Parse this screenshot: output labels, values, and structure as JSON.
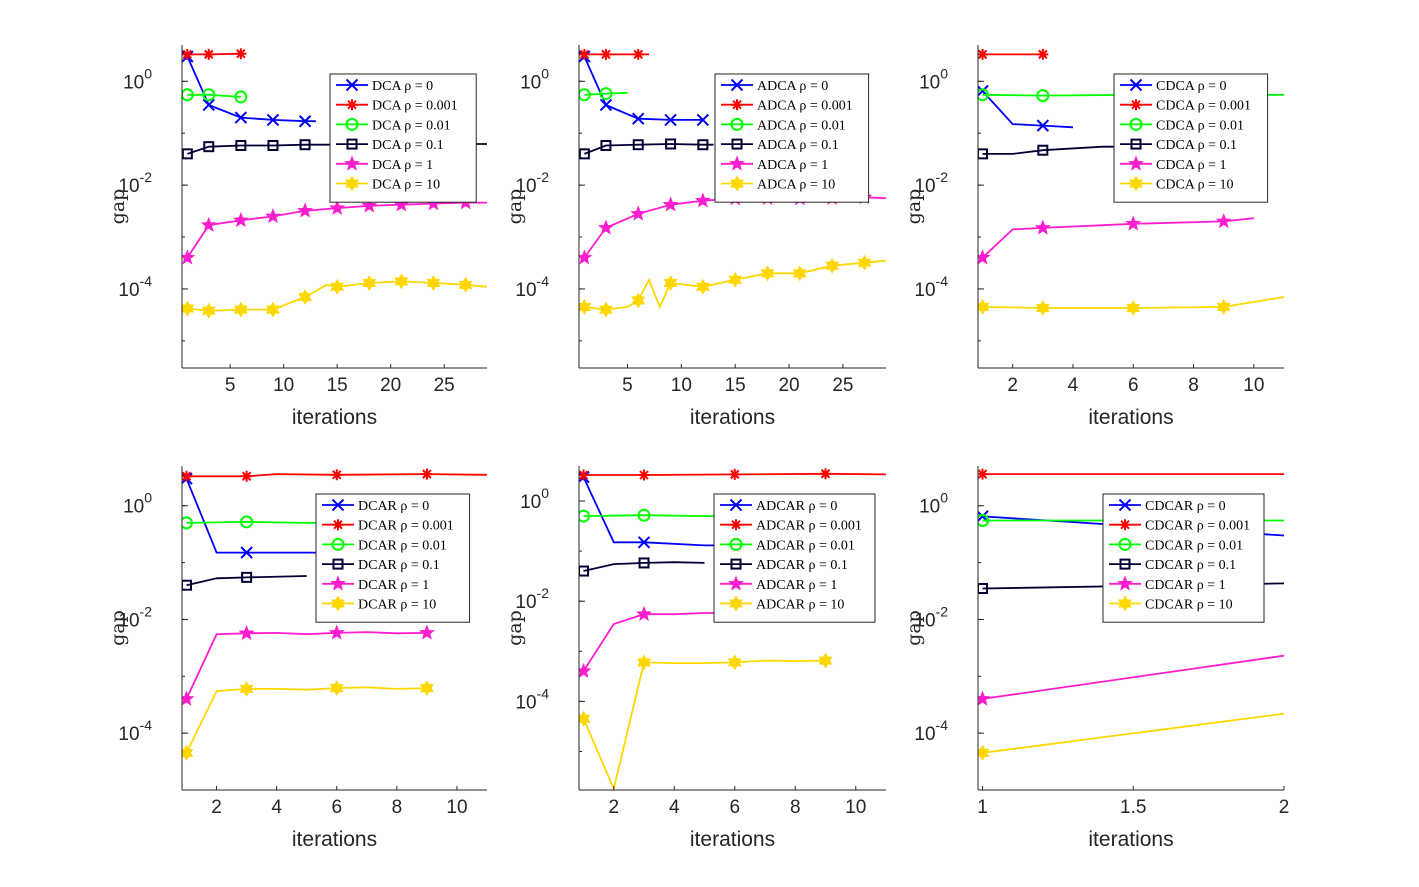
{
  "colors": {
    "rho_0": "#0000ff",
    "rho_0.001": "#ff0000",
    "rho_0.01": "#00ff00",
    "rho_0.1": "#000033",
    "rho_1": "#ff1dce",
    "rho_10": "#ffd700"
  },
  "chart_data": [
    {
      "type": "line",
      "yscale": "log",
      "xlabel": "iterations",
      "ylabel": "gap",
      "xlim": [
        0.5,
        29
      ],
      "ylim": [
        3e-06,
        5
      ],
      "xticks": [
        5,
        10,
        15,
        20,
        25
      ],
      "xtick_labels": [
        "5",
        "10",
        "15",
        "20",
        "25"
      ],
      "yticks": [
        1,
        0.01,
        0.0001
      ],
      "ytick_labels": [
        "10^0",
        "10^-2",
        "10^-4"
      ],
      "series": [
        {
          "name": "DCA ρ = 0",
          "marker": "x",
          "colorKey": "rho_0",
          "x": [
            1,
            3,
            6,
            9,
            12,
            13
          ],
          "y": [
            3,
            0.35,
            0.2,
            0.18,
            0.17,
            0.17
          ],
          "mk": [
            1,
            3,
            6,
            9,
            12
          ]
        },
        {
          "name": "DCA ρ = 0.001",
          "marker": "asterisk",
          "colorKey": "rho_0.001",
          "x": [
            1,
            3,
            6
          ],
          "y": [
            3.3,
            3.3,
            3.4
          ],
          "mk": [
            1,
            3,
            6
          ]
        },
        {
          "name": "DCA ρ = 0.01",
          "marker": "circle",
          "colorKey": "rho_0.01",
          "x": [
            1,
            3,
            6
          ],
          "y": [
            0.55,
            0.55,
            0.5
          ],
          "mk": [
            1,
            3,
            6
          ]
        },
        {
          "name": "DCA ρ = 0.1",
          "marker": "square",
          "colorKey": "rho_0.1",
          "x": [
            1,
            3,
            6,
            9,
            12,
            15,
            20,
            25,
            29
          ],
          "y": [
            0.04,
            0.055,
            0.058,
            0.058,
            0.06,
            0.06,
            0.06,
            0.062,
            0.062
          ],
          "mk": [
            1,
            3,
            6,
            9,
            12
          ]
        },
        {
          "name": "DCA ρ = 1",
          "marker": "star",
          "colorKey": "rho_1",
          "x": [
            1,
            3,
            6,
            9,
            12,
            15,
            18,
            21,
            24,
            27,
            29
          ],
          "y": [
            0.0004,
            0.0017,
            0.0021,
            0.0025,
            0.0032,
            0.0036,
            0.004,
            0.0042,
            0.0044,
            0.0046,
            0.0046
          ],
          "mk": [
            1,
            3,
            6,
            9,
            12,
            15,
            18,
            21,
            24,
            27
          ]
        },
        {
          "name": "DCA ρ = 10",
          "marker": "hexagram",
          "colorKey": "rho_10",
          "x": [
            1,
            3,
            6,
            9,
            12,
            14,
            15,
            18,
            21,
            24,
            27,
            29
          ],
          "y": [
            4.2e-05,
            3.8e-05,
            4e-05,
            4e-05,
            7e-05,
            0.00012,
            0.00011,
            0.00013,
            0.00014,
            0.00013,
            0.00012,
            0.00011
          ],
          "mk": [
            1,
            3,
            6,
            9,
            12,
            15,
            18,
            21,
            24,
            27
          ]
        }
      ]
    },
    {
      "type": "line",
      "yscale": "log",
      "xlabel": "iterations",
      "ylabel": "gap",
      "xlim": [
        0.5,
        29
      ],
      "ylim": [
        3e-06,
        5
      ],
      "xticks": [
        5,
        10,
        15,
        20,
        25
      ],
      "xtick_labels": [
        "5",
        "10",
        "15",
        "20",
        "25"
      ],
      "yticks": [
        1,
        0.01,
        0.0001
      ],
      "ytick_labels": [
        "10^0",
        "10^-2",
        "10^-4"
      ],
      "series": [
        {
          "name": "ADCA ρ = 0",
          "marker": "x",
          "colorKey": "rho_0",
          "x": [
            1,
            3,
            6,
            9,
            12
          ],
          "y": [
            3,
            0.35,
            0.19,
            0.18,
            0.18
          ],
          "mk": [
            1,
            3,
            6,
            9,
            12
          ]
        },
        {
          "name": "ADCA ρ = 0.001",
          "marker": "asterisk",
          "colorKey": "rho_0.001",
          "x": [
            1,
            3,
            6,
            7
          ],
          "y": [
            3.3,
            3.3,
            3.3,
            3.3
          ],
          "mk": [
            1,
            3,
            6
          ]
        },
        {
          "name": "ADCA ρ = 0.01",
          "marker": "circle",
          "colorKey": "rho_0.01",
          "x": [
            1,
            3,
            5
          ],
          "y": [
            0.55,
            0.58,
            0.6
          ],
          "mk": [
            1,
            3
          ]
        },
        {
          "name": "ADCA ρ = 0.1",
          "marker": "square",
          "colorKey": "rho_0.1",
          "x": [
            1,
            3,
            6,
            9,
            12,
            13
          ],
          "y": [
            0.04,
            0.058,
            0.06,
            0.062,
            0.06,
            0.06
          ],
          "mk": [
            1,
            3,
            6,
            9,
            12
          ]
        },
        {
          "name": "ADCA ρ = 1",
          "marker": "star",
          "colorKey": "rho_1",
          "x": [
            1,
            3,
            6,
            9,
            12,
            15,
            18,
            21,
            24,
            27,
            29
          ],
          "y": [
            0.0004,
            0.0015,
            0.0028,
            0.0042,
            0.005,
            0.0055,
            0.0056,
            0.0055,
            0.0056,
            0.0058,
            0.0056
          ],
          "mk": [
            1,
            3,
            6,
            9,
            12,
            15,
            18,
            21,
            24,
            27
          ]
        },
        {
          "name": "ADCA ρ = 10",
          "marker": "hexagram",
          "colorKey": "rho_10",
          "x": [
            1,
            3,
            5,
            6,
            7,
            8,
            9,
            12,
            15,
            18,
            21,
            24,
            27,
            29
          ],
          "y": [
            4.5e-05,
            4e-05,
            4.5e-05,
            6e-05,
            0.00015,
            4.5e-05,
            0.00013,
            0.00011,
            0.00015,
            0.0002,
            0.0002,
            0.00028,
            0.00032,
            0.00035
          ],
          "mk": [
            1,
            3,
            6,
            9,
            12,
            15,
            18,
            21,
            24,
            27
          ]
        }
      ]
    },
    {
      "type": "line",
      "yscale": "log",
      "xlabel": "iterations",
      "ylabel": "gap",
      "xlim": [
        0.85,
        11
      ],
      "ylim": [
        3e-06,
        5
      ],
      "xticks": [
        2,
        4,
        6,
        8,
        10
      ],
      "xtick_labels": [
        "2",
        "4",
        "6",
        "8",
        "10"
      ],
      "yticks": [
        1,
        0.01,
        0.0001
      ],
      "ytick_labels": [
        "10^0",
        "10^-2",
        "10^-4"
      ],
      "series": [
        {
          "name": "CDCA ρ = 0",
          "marker": "x",
          "colorKey": "rho_0",
          "x": [
            1,
            2,
            3,
            4
          ],
          "y": [
            0.65,
            0.15,
            0.14,
            0.13
          ],
          "mk": [
            1,
            3
          ]
        },
        {
          "name": "CDCA ρ = 0.001",
          "marker": "asterisk",
          "colorKey": "rho_0.001",
          "x": [
            1,
            3
          ],
          "y": [
            3.3,
            3.3
          ],
          "mk": [
            1,
            3
          ]
        },
        {
          "name": "CDCA ρ = 0.01",
          "marker": "circle",
          "colorKey": "rho_0.01",
          "x": [
            1,
            3,
            6,
            11
          ],
          "y": [
            0.55,
            0.53,
            0.55,
            0.55
          ],
          "mk": [
            1,
            3
          ]
        },
        {
          "name": "CDCA ρ = 0.1",
          "marker": "square",
          "colorKey": "rho_0.1",
          "x": [
            1,
            2,
            3,
            5,
            6
          ],
          "y": [
            0.04,
            0.04,
            0.047,
            0.055,
            0.055
          ],
          "mk": [
            1,
            3
          ]
        },
        {
          "name": "CDCA ρ = 1",
          "marker": "star",
          "colorKey": "rho_1",
          "x": [
            1,
            2,
            3,
            6,
            9,
            10
          ],
          "y": [
            0.0004,
            0.0014,
            0.0015,
            0.0018,
            0.002,
            0.0023
          ],
          "mk": [
            1,
            3,
            6,
            9
          ]
        },
        {
          "name": "CDCA ρ = 10",
          "marker": "hexagram",
          "colorKey": "rho_10",
          "x": [
            1,
            3,
            6,
            9,
            11
          ],
          "y": [
            4.5e-05,
            4.3e-05,
            4.3e-05,
            4.5e-05,
            7e-05
          ],
          "mk": [
            1,
            3,
            6,
            9
          ]
        }
      ]
    },
    {
      "type": "line",
      "yscale": "log",
      "xlabel": "iterations",
      "ylabel": "gap",
      "xlim": [
        0.85,
        11
      ],
      "ylim": [
        1e-05,
        5
      ],
      "xticks": [
        2,
        4,
        6,
        8,
        10
      ],
      "xtick_labels": [
        "2",
        "4",
        "6",
        "8",
        "10"
      ],
      "yticks": [
        1,
        0.01,
        0.0001
      ],
      "ytick_labels": [
        "10^0",
        "10^-2",
        "10^-4"
      ],
      "series": [
        {
          "name": "DCAR ρ = 0",
          "marker": "x",
          "colorKey": "rho_0",
          "x": [
            1,
            2,
            3,
            6,
            8
          ],
          "y": [
            3,
            0.15,
            0.15,
            0.15,
            0.15
          ],
          "mk": [
            1,
            3
          ]
        },
        {
          "name": "DCAR ρ = 0.001",
          "marker": "asterisk",
          "colorKey": "rho_0.001",
          "x": [
            1,
            3,
            4,
            6,
            9,
            11
          ],
          "y": [
            3.3,
            3.3,
            3.6,
            3.5,
            3.6,
            3.5
          ],
          "mk": [
            1,
            3,
            6,
            9
          ]
        },
        {
          "name": "DCAR ρ = 0.01",
          "marker": "circle",
          "colorKey": "rho_0.01",
          "x": [
            1,
            3,
            5,
            6
          ],
          "y": [
            0.5,
            0.52,
            0.5,
            0.5
          ],
          "mk": [
            1,
            3
          ]
        },
        {
          "name": "DCAR ρ = 0.1",
          "marker": "square",
          "colorKey": "rho_0.1",
          "x": [
            1,
            2,
            3,
            5
          ],
          "y": [
            0.04,
            0.053,
            0.055,
            0.058
          ],
          "mk": [
            1,
            3
          ]
        },
        {
          "name": "DCAR ρ = 1",
          "marker": "star",
          "colorKey": "rho_1",
          "x": [
            1,
            2,
            3,
            4,
            5,
            6,
            7,
            8,
            9
          ],
          "y": [
            0.0004,
            0.0055,
            0.0057,
            0.0058,
            0.0055,
            0.0058,
            0.006,
            0.0057,
            0.0058
          ],
          "mk": [
            1,
            3,
            6,
            9
          ]
        },
        {
          "name": "DCAR ρ = 10",
          "marker": "hexagram",
          "colorKey": "rho_10",
          "x": [
            1,
            2,
            3,
            4,
            5,
            6,
            7,
            8,
            9
          ],
          "y": [
            4.5e-05,
            0.00055,
            0.0006,
            0.0006,
            0.00058,
            0.00062,
            0.00064,
            0.0006,
            0.00062
          ],
          "mk": [
            1,
            3,
            6,
            9
          ]
        }
      ]
    },
    {
      "type": "line",
      "yscale": "log",
      "xlabel": "iterations",
      "ylabel": "gap",
      "xlim": [
        0.85,
        11
      ],
      "ylim": [
        1.7e-06,
        5
      ],
      "xticks": [
        2,
        4,
        6,
        8,
        10
      ],
      "xtick_labels": [
        "2",
        "4",
        "6",
        "8",
        "10"
      ],
      "yticks": [
        1,
        0.01,
        0.0001
      ],
      "ytick_labels": [
        "10^0",
        "10^-2",
        "10^-4"
      ],
      "series": [
        {
          "name": "ADCAR ρ = 0",
          "marker": "x",
          "colorKey": "rho_0",
          "x": [
            1,
            2,
            3,
            5,
            6
          ],
          "y": [
            3,
            0.15,
            0.15,
            0.13,
            0.13
          ],
          "mk": [
            1,
            3
          ]
        },
        {
          "name": "ADCAR ρ = 0.001",
          "marker": "asterisk",
          "colorKey": "rho_0.001",
          "x": [
            1,
            3,
            6,
            9,
            11
          ],
          "y": [
            3.3,
            3.3,
            3.4,
            3.5,
            3.4
          ],
          "mk": [
            1,
            3,
            6,
            9
          ]
        },
        {
          "name": "ADCAR ρ = 0.01",
          "marker": "circle",
          "colorKey": "rho_0.01",
          "x": [
            1,
            3,
            5,
            6
          ],
          "y": [
            0.5,
            0.52,
            0.5,
            0.5
          ],
          "mk": [
            1,
            3
          ]
        },
        {
          "name": "ADCAR ρ = 0.1",
          "marker": "square",
          "colorKey": "rho_0.1",
          "x": [
            1,
            2,
            3,
            4,
            5
          ],
          "y": [
            0.04,
            0.055,
            0.058,
            0.06,
            0.058
          ],
          "mk": [
            1,
            3
          ]
        },
        {
          "name": "ADCAR ρ = 1",
          "marker": "star",
          "colorKey": "rho_1",
          "x": [
            1,
            2,
            3,
            4,
            5,
            6,
            7,
            8,
            9
          ],
          "y": [
            0.0004,
            0.0035,
            0.0055,
            0.0055,
            0.0058,
            0.0058,
            0.006,
            0.0058,
            0.006
          ],
          "mk": [
            1,
            3,
            6,
            9
          ]
        },
        {
          "name": "ADCAR ρ = 10",
          "marker": "hexagram",
          "colorKey": "rho_10",
          "x": [
            1,
            2,
            3,
            4,
            5,
            6,
            7,
            8,
            9
          ],
          "y": [
            4.5e-05,
            1.8e-06,
            0.0006,
            0.00058,
            0.00058,
            0.0006,
            0.00065,
            0.00064,
            0.00065
          ],
          "mk": [
            1,
            3,
            6,
            9
          ]
        }
      ]
    },
    {
      "type": "line",
      "yscale": "log",
      "xlabel": "iterations",
      "ylabel": "gap",
      "xlim": [
        0.985,
        2
      ],
      "ylim": [
        1e-05,
        5
      ],
      "xticks": [
        1,
        1.5,
        2
      ],
      "xtick_labels": [
        "1",
        "1.5",
        "2"
      ],
      "yticks": [
        1,
        0.01,
        0.0001
      ],
      "ytick_labels": [
        "10^0",
        "10^-2",
        "10^-4"
      ],
      "series": [
        {
          "name": "CDCAR ρ = 0",
          "marker": "x",
          "colorKey": "rho_0",
          "x": [
            1,
            2
          ],
          "y": [
            0.65,
            0.3
          ],
          "mk": [
            1
          ]
        },
        {
          "name": "CDCAR ρ = 0.001",
          "marker": "asterisk",
          "colorKey": "rho_0.001",
          "x": [
            1,
            2
          ],
          "y": [
            3.6,
            3.6
          ],
          "mk": [
            1
          ]
        },
        {
          "name": "CDCAR ρ = 0.01",
          "marker": "circle",
          "colorKey": "rho_0.01",
          "x": [
            1,
            2
          ],
          "y": [
            0.55,
            0.55
          ],
          "mk": [
            1
          ]
        },
        {
          "name": "CDCAR ρ = 0.1",
          "marker": "square",
          "colorKey": "rho_0.1",
          "x": [
            1,
            2
          ],
          "y": [
            0.035,
            0.043
          ],
          "mk": [
            1
          ]
        },
        {
          "name": "CDCAR ρ = 1",
          "marker": "star",
          "colorKey": "rho_1",
          "x": [
            1,
            2
          ],
          "y": [
            0.0004,
            0.0023
          ],
          "mk": [
            1
          ]
        },
        {
          "name": "CDCAR ρ = 10",
          "marker": "hexagram",
          "colorKey": "rho_10",
          "x": [
            1,
            2
          ],
          "y": [
            4.5e-05,
            0.00022
          ],
          "mk": [
            1
          ]
        }
      ]
    }
  ]
}
